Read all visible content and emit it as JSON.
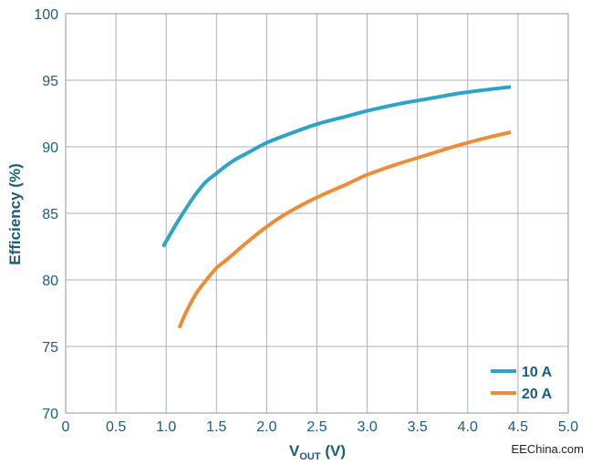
{
  "chart_data": {
    "type": "line",
    "xlabel_main": "V",
    "xlabel_sub": "OUT",
    "xlabel_unit": " (V)",
    "ylabel": "Efficiency (%)",
    "xlim": [
      0,
      5.0
    ],
    "ylim": [
      70,
      100
    ],
    "x_ticks": [
      "0",
      "0.5",
      "1.0",
      "1.5",
      "2.0",
      "2.5",
      "3.0",
      "3.5",
      "4.0",
      "4.5",
      "5.0"
    ],
    "y_ticks": [
      "70",
      "75",
      "80",
      "85",
      "90",
      "95",
      "100"
    ],
    "grid": true,
    "legend_position": "bottom-right",
    "series": [
      {
        "name": "10 A",
        "color": "#2ea3c9",
        "x": [
          0.97,
          1.1,
          1.2,
          1.3,
          1.4,
          1.5,
          1.6,
          1.7,
          1.8,
          2.0,
          2.2,
          2.5,
          2.8,
          3.0,
          3.3,
          3.6,
          3.9,
          4.2,
          4.43
        ],
        "y": [
          82.5,
          84.2,
          85.4,
          86.5,
          87.4,
          88.0,
          88.6,
          89.1,
          89.5,
          90.3,
          90.9,
          91.7,
          92.3,
          92.7,
          93.2,
          93.6,
          94.0,
          94.3,
          94.5
        ]
      },
      {
        "name": "20 A",
        "color": "#ee8d36",
        "x": [
          1.13,
          1.2,
          1.3,
          1.4,
          1.5,
          1.6,
          1.8,
          2.0,
          2.2,
          2.5,
          2.8,
          3.0,
          3.3,
          3.6,
          3.9,
          4.2,
          4.43
        ],
        "y": [
          76.4,
          77.6,
          79.0,
          80.0,
          80.9,
          81.5,
          82.8,
          84.0,
          85.0,
          86.2,
          87.2,
          87.9,
          88.7,
          89.4,
          90.1,
          90.7,
          91.1
        ]
      }
    ]
  },
  "watermark": "EEChina.com"
}
